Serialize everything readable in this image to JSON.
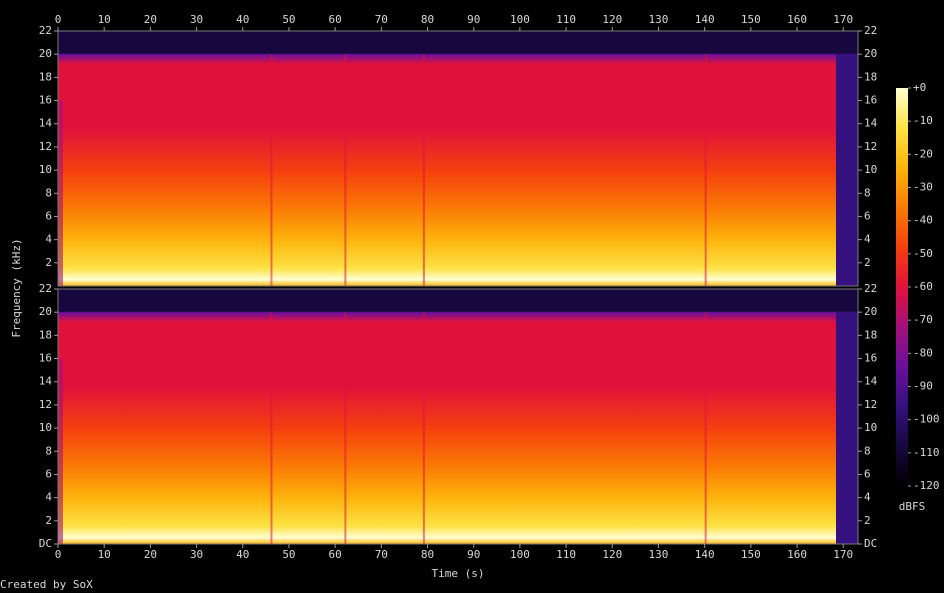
{
  "chart_data": {
    "type": "spectrogram",
    "xlabel": "Time (s)",
    "ylabel": "Frequency (kHz)",
    "xlim": [
      0,
      173.2
    ],
    "xticks": [
      0,
      10,
      20,
      30,
      40,
      50,
      60,
      70,
      80,
      90,
      100,
      110,
      120,
      130,
      140,
      150,
      160,
      170
    ],
    "panels": [
      {
        "ylim": [
          0,
          22
        ],
        "yticks": [
          2,
          4,
          6,
          8,
          10,
          12,
          14,
          16,
          18,
          20,
          22
        ]
      },
      {
        "ylim": [
          0,
          22
        ],
        "yticks": [
          {
            "value": 0,
            "label": "DC"
          },
          2,
          4,
          6,
          8,
          10,
          12,
          14,
          16,
          18,
          20,
          22
        ]
      }
    ],
    "colormap": [
      "#000000",
      "#16083f",
      "#34117e",
      "#6a0f9c",
      "#a4107a",
      "#e0123c",
      "#f5400e",
      "#fa7c05",
      "#fdb40c",
      "#fde246",
      "#ffffd2"
    ],
    "colorbar": {
      "label": "dBFS",
      "ylim": [
        -120,
        0
      ],
      "yticks": [
        {
          "value": 0,
          "label": "+0"
        },
        -10,
        -20,
        -30,
        -40,
        -50,
        -60,
        -70,
        -80,
        -90,
        -100,
        -110,
        -120
      ]
    }
  },
  "footer": "Created by SoX"
}
